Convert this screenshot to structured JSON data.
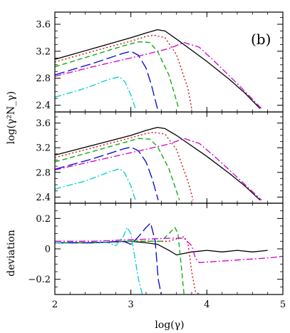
{
  "chart_data": {
    "type": "line",
    "panel_tag": "(b)",
    "xlabel": "log(γ)",
    "x_ticks": [
      "2",
      "3",
      "4",
      "5"
    ],
    "xlim": [
      2,
      5
    ],
    "panels": [
      {
        "id": "top",
        "ylabel": "log(γ²N_γ)",
        "ylim": [
          2.3,
          3.78
        ],
        "y_ticks": [
          "2.4",
          "2.8",
          "3.2",
          "3.6"
        ],
        "series": [
          {
            "color": "#000000",
            "dash": "solid",
            "x": [
              2.0,
              2.5,
              3.0,
              3.2,
              3.35,
              3.45,
              3.6,
              4.0,
              4.3,
              4.5,
              4.7
            ],
            "y": [
              3.08,
              3.24,
              3.4,
              3.47,
              3.52,
              3.5,
              3.38,
              3.05,
              2.78,
              2.58,
              2.35
            ]
          },
          {
            "color": "#cc0000",
            "dash": "dotted",
            "x": [
              2.0,
              2.5,
              3.0,
              3.2,
              3.3,
              3.45,
              3.6,
              3.75,
              3.8
            ],
            "y": [
              3.04,
              3.2,
              3.35,
              3.42,
              3.44,
              3.4,
              3.15,
              2.65,
              2.35
            ]
          },
          {
            "color": "#00aa00",
            "dash": "dashed",
            "x": [
              2.0,
              2.5,
              2.9,
              3.1,
              3.25,
              3.35,
              3.5,
              3.63
            ],
            "y": [
              2.97,
              3.14,
              3.28,
              3.34,
              3.33,
              3.2,
              2.85,
              2.35
            ]
          },
          {
            "color": "#0000cc",
            "dash": "longdash",
            "x": [
              2.0,
              2.5,
              2.9,
              3.0,
              3.1,
              3.2,
              3.27,
              3.35
            ],
            "y": [
              2.85,
              3.02,
              3.17,
              3.2,
              3.14,
              2.95,
              2.7,
              2.35
            ]
          },
          {
            "color": "#00cccc",
            "dash": "dashdot",
            "x": [
              2.0,
              2.4,
              2.7,
              2.85,
              2.92,
              3.0,
              3.06
            ],
            "y": [
              2.52,
              2.65,
              2.78,
              2.82,
              2.75,
              2.55,
              2.35
            ]
          },
          {
            "color": "#cc00cc",
            "dash": "dashdot",
            "x": [
              2.0,
              2.5,
              3.0,
              3.5,
              3.7,
              3.9,
              4.1,
              4.4,
              4.72
            ],
            "y": [
              2.83,
              2.97,
              3.1,
              3.24,
              3.33,
              3.26,
              3.05,
              2.72,
              2.35
            ]
          }
        ]
      },
      {
        "id": "middle",
        "ylabel": "",
        "ylim": [
          2.3,
          3.78
        ],
        "y_ticks": [
          "2.4",
          "2.8",
          "3.2",
          "3.6"
        ],
        "series": [
          {
            "color": "#000000",
            "dash": "solid",
            "x": [
              2.0,
              2.5,
              3.0,
              3.2,
              3.35,
              3.45,
              3.6,
              4.0,
              4.3,
              4.5,
              4.7
            ],
            "y": [
              3.08,
              3.24,
              3.4,
              3.48,
              3.53,
              3.51,
              3.4,
              3.06,
              2.78,
              2.58,
              2.35
            ]
          },
          {
            "color": "#cc0000",
            "dash": "dotted",
            "x": [
              2.0,
              2.5,
              3.0,
              3.2,
              3.3,
              3.45,
              3.6,
              3.75,
              3.82
            ],
            "y": [
              3.04,
              3.2,
              3.36,
              3.43,
              3.45,
              3.42,
              3.17,
              2.66,
              2.35
            ]
          },
          {
            "color": "#00aa00",
            "dash": "dashed",
            "x": [
              2.0,
              2.5,
              2.9,
              3.1,
              3.25,
              3.35,
              3.5,
              3.64
            ],
            "y": [
              2.97,
              3.14,
              3.28,
              3.35,
              3.34,
              3.22,
              2.86,
              2.35
            ]
          },
          {
            "color": "#0000cc",
            "dash": "longdash",
            "x": [
              2.0,
              2.5,
              2.9,
              3.0,
              3.1,
              3.2,
              3.28,
              3.36
            ],
            "y": [
              2.85,
              3.02,
              3.18,
              3.21,
              3.15,
              2.97,
              2.7,
              2.35
            ]
          },
          {
            "color": "#00cccc",
            "dash": "dashdot",
            "x": [
              2.0,
              2.4,
              2.7,
              2.85,
              2.92,
              3.0,
              3.06
            ],
            "y": [
              2.53,
              2.66,
              2.8,
              2.86,
              2.79,
              2.58,
              2.35
            ]
          },
          {
            "color": "#cc00cc",
            "dash": "dashdot",
            "x": [
              2.0,
              2.5,
              3.0,
              3.5,
              3.7,
              3.9,
              4.1,
              4.4,
              4.72
            ],
            "y": [
              2.84,
              2.98,
              3.12,
              3.26,
              3.35,
              3.27,
              3.06,
              2.72,
              2.35
            ]
          }
        ]
      },
      {
        "id": "bottom",
        "ylabel": "deviation",
        "ylim": [
          -0.3,
          0.3
        ],
        "y_ticks": [
          "−0.2",
          "0",
          "0.2"
        ],
        "y_tick_values": [
          -0.2,
          0,
          0.2
        ],
        "series": [
          {
            "color": "#000000",
            "dash": "solid",
            "x": [
              2.0,
              2.5,
              3.0,
              3.2,
              3.35,
              3.5,
              3.6,
              3.8,
              4.0,
              4.2,
              4.4,
              4.6,
              4.8
            ],
            "y": [
              0.04,
              0.04,
              0.05,
              0.04,
              0.03,
              -0.01,
              -0.04,
              -0.02,
              -0.01,
              -0.02,
              -0.01,
              -0.02,
              -0.01
            ]
          },
          {
            "color": "#cc0000",
            "dash": "dotted",
            "x": [
              2.0,
              2.5,
              3.0,
              3.3,
              3.5,
              3.7,
              3.75,
              3.8,
              3.85,
              3.9
            ],
            "y": [
              0.04,
              0.04,
              0.05,
              0.05,
              0.05,
              0.08,
              0.04,
              -0.15,
              -0.28,
              -0.3
            ]
          },
          {
            "color": "#00aa00",
            "dash": "dashed",
            "x": [
              2.0,
              2.5,
              3.0,
              3.3,
              3.4,
              3.5,
              3.58,
              3.62,
              3.66,
              3.7
            ],
            "y": [
              0.04,
              0.04,
              0.05,
              0.05,
              0.05,
              0.1,
              0.14,
              0.1,
              -0.1,
              -0.3
            ]
          },
          {
            "color": "#0000cc",
            "dash": "longdash",
            "x": [
              2.0,
              2.5,
              2.9,
              3.0,
              3.1,
              3.2,
              3.26,
              3.32,
              3.36,
              3.4
            ],
            "y": [
              0.04,
              0.04,
              0.05,
              0.03,
              0.08,
              0.14,
              0.17,
              0.05,
              -0.2,
              -0.3
            ]
          },
          {
            "color": "#00cccc",
            "dash": "dashdot",
            "x": [
              2.0,
              2.4,
              2.7,
              2.8,
              2.9,
              2.95,
              3.0,
              3.05,
              3.1,
              3.15
            ],
            "y": [
              0.04,
              0.05,
              0.04,
              0.02,
              0.08,
              0.14,
              0.1,
              -0.05,
              -0.2,
              -0.3
            ]
          },
          {
            "color": "#cc00cc",
            "dash": "dashdot",
            "x": [
              2.0,
              2.5,
              3.0,
              3.5,
              3.7,
              3.8,
              3.85,
              3.9,
              4.2,
              4.5,
              4.8,
              5.0
            ],
            "y": [
              0.05,
              0.05,
              0.06,
              0.07,
              0.07,
              0.02,
              -0.06,
              -0.09,
              -0.08,
              -0.07,
              -0.06,
              -0.05
            ]
          }
        ]
      }
    ]
  }
}
